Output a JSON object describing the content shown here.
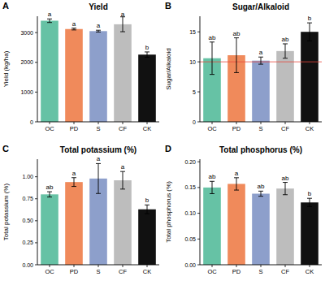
{
  "chart_data": [
    {
      "type": "bar",
      "label": "A",
      "title": "Yield",
      "y_label": "Yield (kg/ha)",
      "categories": [
        "OC",
        "PD",
        "S",
        "CF",
        "CK"
      ],
      "values": [
        3400,
        3120,
        3050,
        3280,
        2260
      ],
      "errors": [
        60,
        30,
        30,
        250,
        90
      ],
      "annotations": [
        "a",
        "a",
        "a",
        "a",
        "b"
      ],
      "colors": [
        "#66c2a5",
        "#f08a5b",
        "#8d9fcb",
        "#bdbdbd",
        "#111111"
      ],
      "ylim": [
        0,
        3550
      ],
      "yticks": [
        0,
        1000,
        2000,
        3000
      ],
      "grid": false
    },
    {
      "type": "bar",
      "label": "B",
      "title": "Sugar/Alkaloid",
      "y_label": "Sugar/Alkaloid",
      "categories": [
        "OC",
        "PD",
        "S",
        "CF",
        "CK"
      ],
      "values": [
        10.6,
        11.1,
        10.2,
        11.8,
        15.0
      ],
      "errors": [
        2.7,
        2.9,
        0.6,
        1.2,
        1.5
      ],
      "annotations": [
        "ab",
        "ab",
        "a",
        "ab",
        "b"
      ],
      "hline": 10,
      "colors": [
        "#66c2a5",
        "#f08a5b",
        "#8d9fcb",
        "#bdbdbd",
        "#111111"
      ],
      "ylim": [
        0,
        17.6
      ],
      "yticks": [
        0,
        5,
        10,
        15
      ],
      "grid": false
    },
    {
      "type": "bar",
      "label": "C",
      "title": "Total potassium (%)",
      "y_label": "Total potassium (%)",
      "categories": [
        "OC",
        "PD",
        "S",
        "CF",
        "CK"
      ],
      "values": [
        0.8,
        0.94,
        0.98,
        0.96,
        0.63
      ],
      "errors": [
        0.03,
        0.05,
        0.17,
        0.1,
        0.05
      ],
      "annotations": [
        "ab",
        "a",
        "a",
        "a",
        "b"
      ],
      "colors": [
        "#66c2a5",
        "#f08a5b",
        "#8d9fcb",
        "#bdbdbd",
        "#111111"
      ],
      "ylim": [
        0,
        1.2
      ],
      "yticks": [
        {
          "value": 0,
          "label": "0.00"
        },
        {
          "value": 0.25,
          "label": "0.25"
        },
        {
          "value": 0.5,
          "label": "0.50"
        },
        {
          "value": 0.75,
          "label": "0.75"
        },
        {
          "value": 1,
          "label": "1.00"
        }
      ],
      "grid": false
    },
    {
      "type": "bar",
      "label": "D",
      "title": "Total phosphorus (%)",
      "y_label": "Total phosphorus (%)",
      "categories": [
        "OC",
        "PD",
        "S",
        "CF",
        "CK"
      ],
      "values": [
        0.15,
        0.157,
        0.138,
        0.148,
        0.121
      ],
      "errors": [
        0.012,
        0.012,
        0.005,
        0.012,
        0.008
      ],
      "annotations": [
        "ab",
        "a",
        "ab",
        "ab",
        "b"
      ],
      "colors": [
        "#66c2a5",
        "#f08a5b",
        "#8d9fcb",
        "#bdbdbd",
        "#111111"
      ],
      "ylim": [
        0,
        0.205
      ],
      "yticks": [
        {
          "value": 0,
          "label": "0.00"
        },
        {
          "value": 0.05,
          "label": "0.05"
        },
        {
          "value": 0.1,
          "label": "0.10"
        },
        {
          "value": 0.15,
          "label": "0.15"
        },
        {
          "value": 0.2,
          "label": "0.20"
        }
      ],
      "grid": false
    }
  ]
}
